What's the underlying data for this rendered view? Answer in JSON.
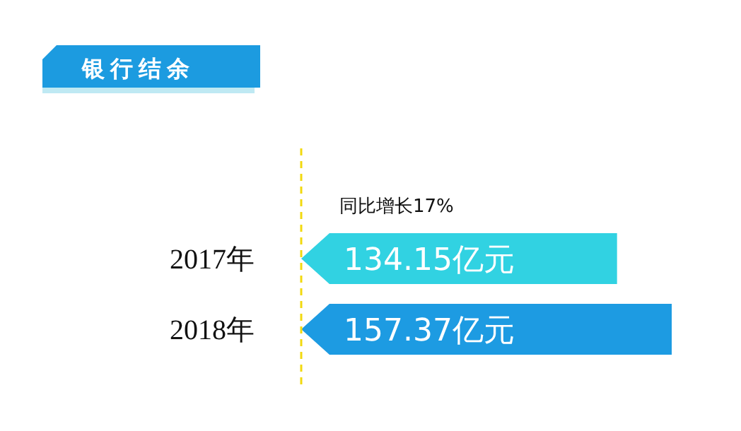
{
  "chart_data": {
    "type": "bar",
    "orientation": "horizontal",
    "title": "银行结余",
    "categories": [
      "2017年",
      "2018年"
    ],
    "values": [
      134.15,
      157.37
    ],
    "value_labels": [
      "134.15亿元",
      "157.37亿元"
    ],
    "colors": [
      "#31d2e2",
      "#1d9be2"
    ],
    "ref_lines": [
      {
        "axis": "x",
        "value": 0,
        "color": "#f2d90f",
        "line_style": "dashed"
      }
    ],
    "annotations": [
      "同比增长17%"
    ]
  }
}
